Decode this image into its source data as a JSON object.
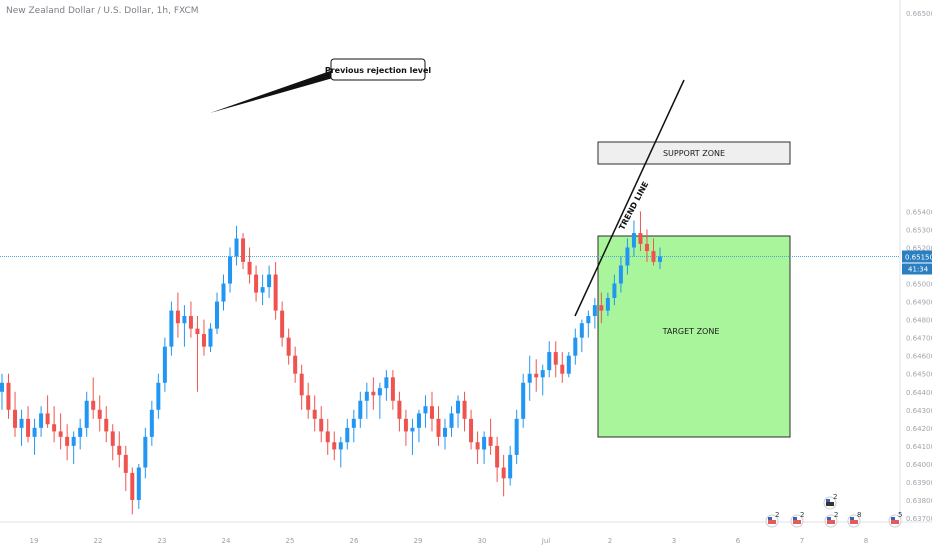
{
  "header": {
    "symbol_title": "New Zealand Dollar / U.S. Dollar, 1h, FXCM"
  },
  "price_scale": {
    "labels": [
      "0.66500",
      "0.65400",
      "0.65300",
      "0.65200",
      "0.65100",
      "0.65000",
      "0.64900",
      "0.64800",
      "0.64700",
      "0.64600",
      "0.64500",
      "0.64400",
      "0.64300",
      "0.64200",
      "0.64100",
      "0.64000",
      "0.63900",
      "0.63800",
      "0.63700"
    ],
    "current_price": "0.65150",
    "countdown": "41:34"
  },
  "time_axis": {
    "labels": [
      "19",
      "22",
      "23",
      "24",
      "25",
      "26",
      "29",
      "30",
      "Jul",
      "2",
      "3",
      "6",
      "7",
      "8"
    ]
  },
  "annotations": {
    "callout": "Previous rejection level",
    "support_zone": "SUPPORT ZONE",
    "target_zone": "TARGET ZONE",
    "trend_line": "TREND LINE"
  },
  "event_badges": [
    "2",
    "2",
    "2",
    "8",
    "5",
    "2"
  ],
  "colors": {
    "bull": "#2196f3",
    "bear": "#ef5350",
    "price_line": "#4fa8d8",
    "price_label_bg": "#2a7fc0",
    "support_fill": "#efefef",
    "target_fill": "#a8f59b"
  },
  "chart_data": {
    "type": "candlestick",
    "instrument": "New Zealand Dollar / U.S. Dollar",
    "timeframe": "1h",
    "source": "FXCM",
    "ylim": [
      0.637,
      0.6655
    ],
    "current_price": 0.6515,
    "grid": false,
    "x_labels": [
      "19",
      "22",
      "23",
      "24",
      "25",
      "26",
      "29",
      "30",
      "Jul",
      "2",
      "3",
      "6",
      "7",
      "8"
    ],
    "ohlc": [
      [
        0.644,
        0.645,
        0.643,
        0.6445
      ],
      [
        0.6445,
        0.645,
        0.6425,
        0.643
      ],
      [
        0.643,
        0.644,
        0.6415,
        0.642
      ],
      [
        0.642,
        0.643,
        0.641,
        0.6425
      ],
      [
        0.6425,
        0.6432,
        0.6412,
        0.6415
      ],
      [
        0.6415,
        0.6425,
        0.6405,
        0.642
      ],
      [
        0.642,
        0.6432,
        0.6415,
        0.6428
      ],
      [
        0.6428,
        0.6438,
        0.642,
        0.6422
      ],
      [
        0.6422,
        0.6432,
        0.6412,
        0.6418
      ],
      [
        0.6418,
        0.6428,
        0.6408,
        0.6415
      ],
      [
        0.6415,
        0.6422,
        0.6402,
        0.641
      ],
      [
        0.641,
        0.6418,
        0.64,
        0.6415
      ],
      [
        0.6415,
        0.6425,
        0.6408,
        0.642
      ],
      [
        0.642,
        0.644,
        0.6415,
        0.6435
      ],
      [
        0.6435,
        0.6448,
        0.6425,
        0.643
      ],
      [
        0.643,
        0.6438,
        0.6418,
        0.6425
      ],
      [
        0.6425,
        0.6432,
        0.6412,
        0.6418
      ],
      [
        0.6418,
        0.6422,
        0.6402,
        0.641
      ],
      [
        0.641,
        0.6418,
        0.6398,
        0.6405
      ],
      [
        0.6405,
        0.641,
        0.6385,
        0.6395
      ],
      [
        0.6395,
        0.6398,
        0.6372,
        0.638
      ],
      [
        0.638,
        0.64,
        0.6375,
        0.6398
      ],
      [
        0.6398,
        0.642,
        0.6392,
        0.6415
      ],
      [
        0.6415,
        0.6435,
        0.641,
        0.643
      ],
      [
        0.643,
        0.645,
        0.6425,
        0.6445
      ],
      [
        0.6445,
        0.647,
        0.644,
        0.6465
      ],
      [
        0.6465,
        0.649,
        0.646,
        0.6485
      ],
      [
        0.6485,
        0.6495,
        0.647,
        0.6478
      ],
      [
        0.6478,
        0.6488,
        0.6465,
        0.6482
      ],
      [
        0.6482,
        0.649,
        0.647,
        0.6475
      ],
      [
        0.6475,
        0.6482,
        0.644,
        0.6472
      ],
      [
        0.6472,
        0.648,
        0.646,
        0.6465
      ],
      [
        0.6465,
        0.6478,
        0.6462,
        0.6475
      ],
      [
        0.6475,
        0.6495,
        0.6472,
        0.649
      ],
      [
        0.649,
        0.6505,
        0.6485,
        0.65
      ],
      [
        0.65,
        0.652,
        0.6495,
        0.6515
      ],
      [
        0.6515,
        0.6532,
        0.651,
        0.6525
      ],
      [
        0.6525,
        0.6528,
        0.6508,
        0.6512
      ],
      [
        0.6512,
        0.652,
        0.65,
        0.6505
      ],
      [
        0.6505,
        0.651,
        0.649,
        0.6495
      ],
      [
        0.6495,
        0.6505,
        0.6488,
        0.6498
      ],
      [
        0.6498,
        0.651,
        0.6492,
        0.6505
      ],
      [
        0.6505,
        0.6512,
        0.648,
        0.6485
      ],
      [
        0.6485,
        0.649,
        0.6465,
        0.647
      ],
      [
        0.647,
        0.6475,
        0.6455,
        0.646
      ],
      [
        0.646,
        0.6465,
        0.6445,
        0.645
      ],
      [
        0.645,
        0.6455,
        0.643,
        0.6438
      ],
      [
        0.6438,
        0.6445,
        0.6425,
        0.643
      ],
      [
        0.643,
        0.6438,
        0.6418,
        0.6425
      ],
      [
        0.6425,
        0.6432,
        0.6412,
        0.6418
      ],
      [
        0.6418,
        0.6425,
        0.6405,
        0.6412
      ],
      [
        0.6412,
        0.6418,
        0.6402,
        0.6408
      ],
      [
        0.6408,
        0.6415,
        0.6398,
        0.6412
      ],
      [
        0.6412,
        0.6425,
        0.6408,
        0.642
      ],
      [
        0.642,
        0.643,
        0.6412,
        0.6425
      ],
      [
        0.6425,
        0.644,
        0.642,
        0.6435
      ],
      [
        0.6435,
        0.6445,
        0.6425,
        0.644
      ],
      [
        0.644,
        0.6448,
        0.643,
        0.6438
      ],
      [
        0.6438,
        0.6445,
        0.6425,
        0.6442
      ],
      [
        0.6442,
        0.6452,
        0.6435,
        0.6448
      ],
      [
        0.6448,
        0.6452,
        0.643,
        0.6435
      ],
      [
        0.6435,
        0.644,
        0.6418,
        0.6425
      ],
      [
        0.6425,
        0.643,
        0.641,
        0.6418
      ],
      [
        0.6418,
        0.6425,
        0.6405,
        0.642
      ],
      [
        0.642,
        0.643,
        0.6412,
        0.6428
      ],
      [
        0.6428,
        0.6438,
        0.642,
        0.6432
      ],
      [
        0.6432,
        0.644,
        0.6418,
        0.6425
      ],
      [
        0.6425,
        0.6432,
        0.641,
        0.6415
      ],
      [
        0.6415,
        0.6425,
        0.6408,
        0.642
      ],
      [
        0.642,
        0.6432,
        0.6415,
        0.6428
      ],
      [
        0.6428,
        0.6438,
        0.642,
        0.6435
      ],
      [
        0.6435,
        0.644,
        0.6418,
        0.6425
      ],
      [
        0.6425,
        0.643,
        0.6408,
        0.6412
      ],
      [
        0.6412,
        0.6418,
        0.64,
        0.6408
      ],
      [
        0.6408,
        0.6418,
        0.64,
        0.6415
      ],
      [
        0.6415,
        0.6425,
        0.6405,
        0.641
      ],
      [
        0.641,
        0.6415,
        0.639,
        0.6398
      ],
      [
        0.6398,
        0.6405,
        0.6382,
        0.6392
      ],
      [
        0.6392,
        0.641,
        0.6388,
        0.6405
      ],
      [
        0.6405,
        0.643,
        0.64,
        0.6425
      ],
      [
        0.6425,
        0.645,
        0.642,
        0.6445
      ],
      [
        0.6445,
        0.646,
        0.6435,
        0.645
      ],
      [
        0.645,
        0.6458,
        0.644,
        0.6448
      ],
      [
        0.6448,
        0.6455,
        0.6438,
        0.6452
      ],
      [
        0.6452,
        0.6468,
        0.6448,
        0.6462
      ],
      [
        0.6462,
        0.6468,
        0.6448,
        0.6455
      ],
      [
        0.6455,
        0.6462,
        0.6445,
        0.645
      ],
      [
        0.645,
        0.6462,
        0.6448,
        0.646
      ],
      [
        0.646,
        0.6475,
        0.6455,
        0.647
      ],
      [
        0.647,
        0.648,
        0.6462,
        0.6478
      ],
      [
        0.6478,
        0.6485,
        0.647,
        0.6482
      ],
      [
        0.6482,
        0.6492,
        0.6475,
        0.6488
      ],
      [
        0.6488,
        0.6495,
        0.6478,
        0.6485
      ],
      [
        0.6485,
        0.6495,
        0.6482,
        0.6492
      ],
      [
        0.6492,
        0.6505,
        0.6488,
        0.65
      ],
      [
        0.65,
        0.6515,
        0.6495,
        0.651
      ],
      [
        0.651,
        0.6525,
        0.6505,
        0.652
      ],
      [
        0.652,
        0.6535,
        0.6515,
        0.6528
      ],
      [
        0.6528,
        0.654,
        0.6518,
        0.6522
      ],
      [
        0.6522,
        0.653,
        0.6512,
        0.6518
      ],
      [
        0.6518,
        0.6525,
        0.651,
        0.6512
      ],
      [
        0.6512,
        0.652,
        0.6508,
        0.6515
      ]
    ]
  }
}
